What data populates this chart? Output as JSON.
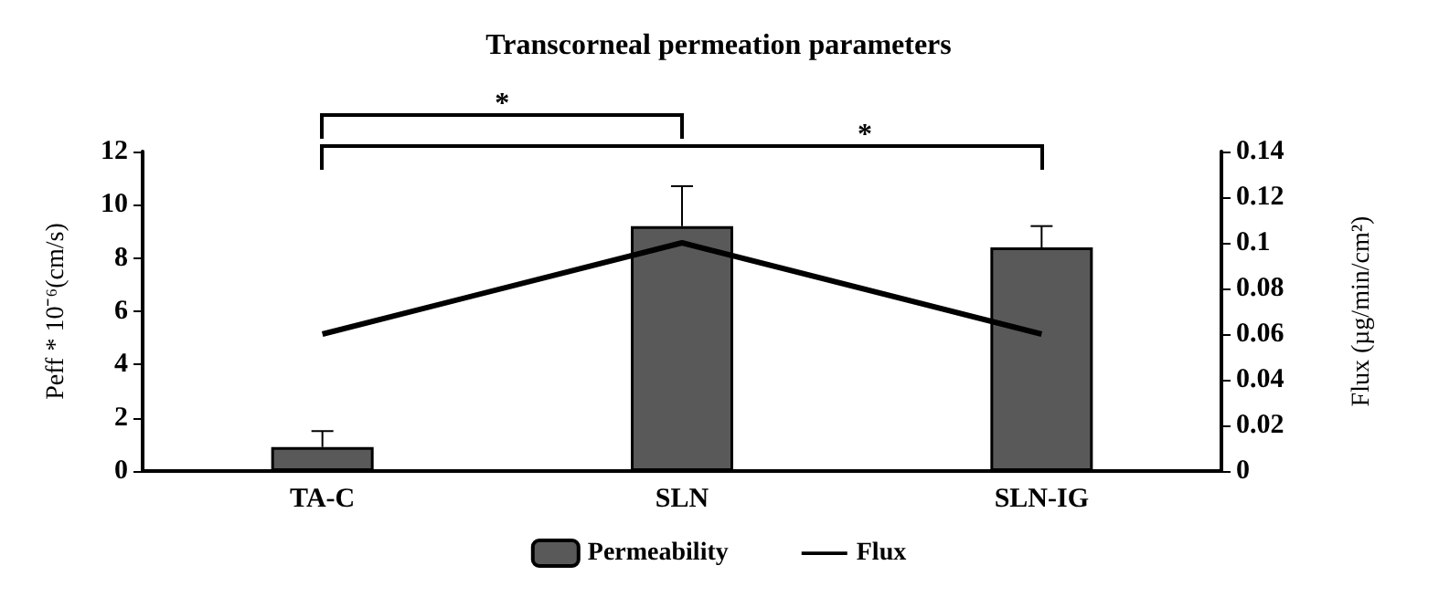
{
  "chart_data": {
    "type": "bar",
    "title": "Transcorneal permeation parameters",
    "ylabel": "Peff * 10⁻⁶(cm/s)",
    "y2label": "Flux (µg/min/cm²)",
    "categories": [
      "TA-C",
      "SLN",
      "SLN-IG"
    ],
    "series": [
      {
        "name": "Permeability",
        "color": "#595959",
        "values": [
          0.9,
          9.2,
          8.4
        ],
        "errors": [
          0.6,
          1.5,
          0.8
        ]
      },
      {
        "name": "Flux",
        "type": "line",
        "axis": "y2",
        "color": "#000000",
        "values": [
          0.06,
          0.1,
          0.06
        ]
      }
    ],
    "ylim": [
      0,
      12
    ],
    "yticks": [
      0,
      2,
      4,
      6,
      8,
      10,
      12
    ],
    "y2lim": [
      0,
      0.14
    ],
    "y2ticks": [
      0,
      0.02,
      0.04,
      0.06,
      0.08,
      0.1,
      0.12,
      0.14
    ],
    "annotations": [
      "*",
      "*"
    ],
    "legend": "bottom",
    "grid": false,
    "marker": "none",
    "line_style": "solid"
  }
}
